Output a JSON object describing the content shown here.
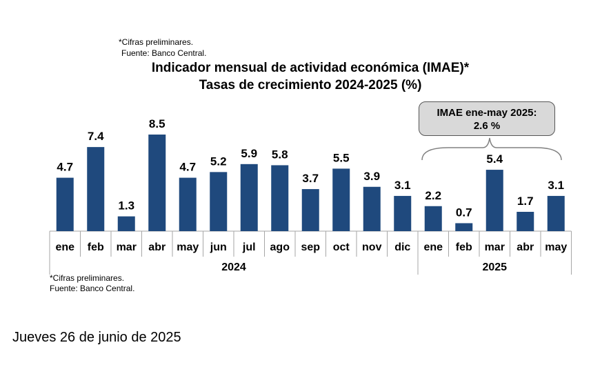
{
  "notes_top": {
    "line1": "*Cifras preliminares.",
    "line2": "Fuente: Banco Central."
  },
  "notes_bottom": {
    "line1": "*Cifras preliminares.",
    "line2": "Fuente: Banco Central."
  },
  "date": "Jueves 26 de junio de 2025",
  "callout": {
    "line1": "IMAE ene-may 2025:",
    "line2": "2.6 %"
  },
  "bar_color": "#1f497d",
  "chart_data": {
    "type": "bar",
    "title": "Indicador mensual de actividad económica (IMAE)*",
    "subtitle": "Tasas de crecimiento 2024-2025 (%)",
    "categories": [
      "ene",
      "feb",
      "mar",
      "abr",
      "may",
      "jun",
      "jul",
      "ago",
      "sep",
      "oct",
      "nov",
      "dic",
      "ene",
      "feb",
      "mar",
      "abr",
      "may"
    ],
    "years": [
      {
        "label": "2024",
        "count": 12
      },
      {
        "label": "2025",
        "count": 5
      }
    ],
    "values": [
      4.7,
      7.4,
      1.3,
      8.5,
      4.7,
      5.2,
      5.9,
      5.8,
      3.7,
      5.5,
      3.9,
      3.1,
      2.2,
      0.7,
      5.4,
      1.7,
      3.1
    ],
    "ylim": [
      0,
      9
    ],
    "xlabel": "",
    "ylabel": ""
  }
}
